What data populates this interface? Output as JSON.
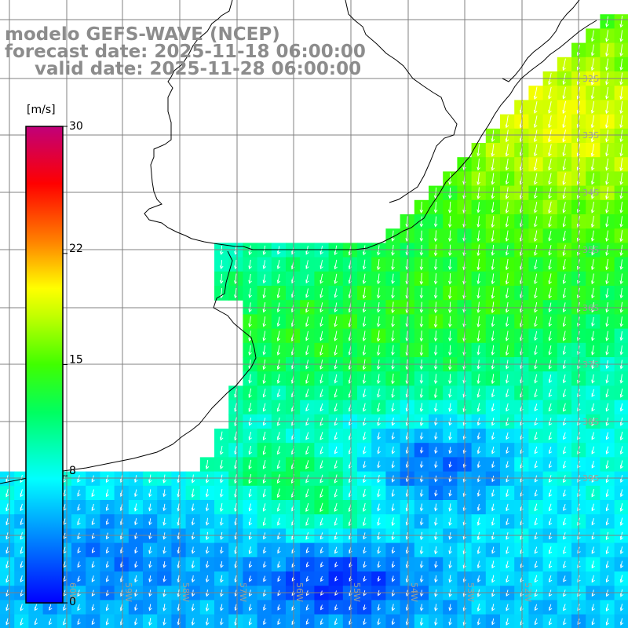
{
  "title": {
    "line1": "modelo GEFS-WAVE (NCEP)",
    "line2": "forecast date: 2025-11-18 06:00:00",
    "line3": "valid date: 2025-11-28 06:00:00"
  },
  "colorbar": {
    "unit": "[m/s]",
    "ticks": [
      "30",
      "22",
      "15",
      "8",
      "0"
    ],
    "tick_values": [
      30,
      22,
      15,
      8,
      0
    ],
    "range": [
      0,
      30
    ],
    "colors": [
      "#0000ff",
      "#0090ff",
      "#00ffff",
      "#00ff80",
      "#00e000",
      "#80ff00",
      "#ffff00",
      "#ff8000",
      "#ff0000",
      "#e00060",
      "#c00080"
    ]
  },
  "map": {
    "lat_labels": [
      "32S",
      "33S",
      "34S",
      "35S",
      "36S",
      "37S",
      "38S",
      "39S"
    ],
    "lon_labels": [
      "60W",
      "59W",
      "58W",
      "57W",
      "56W",
      "55W",
      "54W",
      "53W",
      "52W"
    ],
    "lat_range": [
      -40.5,
      -31.5
    ],
    "lon_range": [
      -61.0,
      -51.1
    ],
    "land_color": "#ffffff",
    "grid_color": "#808080",
    "coast_color": "#000000"
  }
}
